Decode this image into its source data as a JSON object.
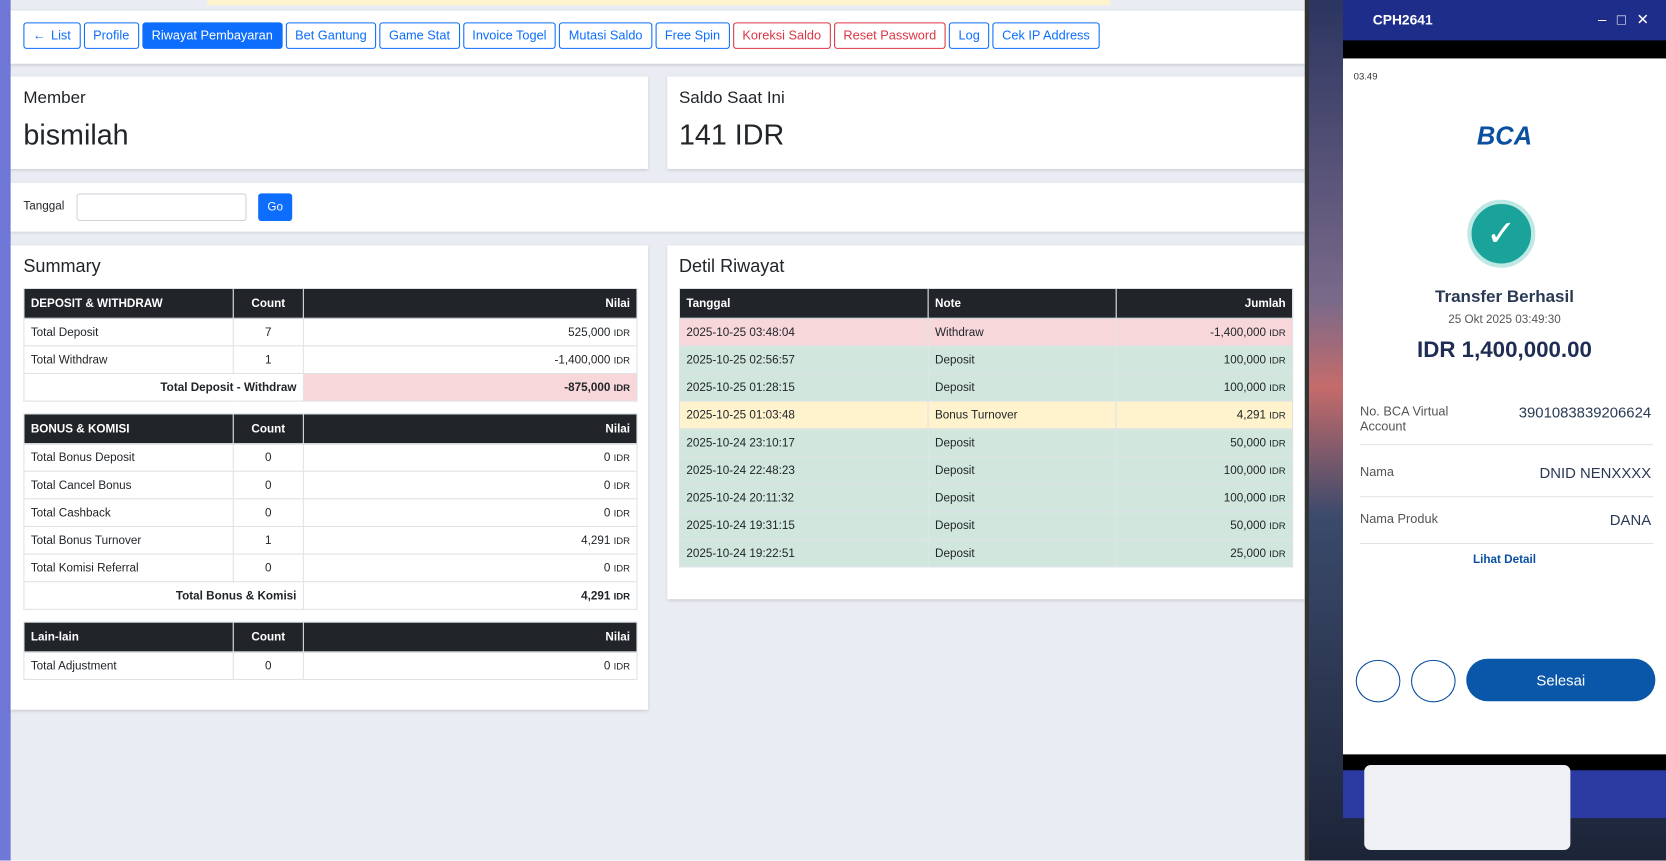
{
  "nav": [
    "List",
    "Profile",
    "Riwayat Pembayaran",
    "Bet Gantung",
    "Game Stat",
    "Invoice Togel",
    "Mutasi Saldo",
    "Free Spin",
    "Koreksi Saldo",
    "Reset Password",
    "Log",
    "Cek IP Address"
  ],
  "member": {
    "label": "Member",
    "value": "bismilah"
  },
  "saldo": {
    "label": "Saldo Saat Ini",
    "value": "141 IDR"
  },
  "filter": {
    "label": "Tanggal",
    "button": "Go"
  },
  "currency": "IDR",
  "summary": {
    "title": "Summary",
    "sections": [
      {
        "headers": [
          "DEPOSIT & WITHDRAW",
          "Count",
          "Nilai"
        ],
        "rows": [
          [
            "Total Deposit",
            "7",
            "525,000"
          ],
          [
            "Total Withdraw",
            "1",
            "-1,400,000"
          ]
        ],
        "total": {
          "label": "Total Deposit - Withdraw",
          "value": "-875,000",
          "color": "#f8d7da"
        }
      },
      {
        "headers": [
          "BONUS & KOMISI",
          "Count",
          "Nilai"
        ],
        "rows": [
          [
            "Total Bonus Deposit",
            "0",
            "0"
          ],
          [
            "Total Cancel Bonus",
            "0",
            "0"
          ],
          [
            "Total Cashback",
            "0",
            "0"
          ],
          [
            "Total Bonus Turnover",
            "1",
            "4,291"
          ],
          [
            "Total Komisi Referral",
            "0",
            "0"
          ]
        ],
        "total": {
          "label": "Total Bonus & Komisi",
          "value": "4,291",
          "color": "#ffffff"
        }
      },
      {
        "headers": [
          "Lain-lain",
          "Count",
          "Nilai"
        ],
        "rows": [
          [
            "Total Adjustment",
            "0",
            "0"
          ]
        ]
      }
    ]
  },
  "detail": {
    "title": "Detil Riwayat",
    "headers": [
      "Tanggal",
      "Note",
      "Jumlah"
    ],
    "rows": [
      {
        "cells": [
          "2025-10-25 03:48:04",
          "Withdraw",
          "-1,400,000"
        ],
        "color": "#f8d7da"
      },
      {
        "cells": [
          "2025-10-25 02:56:57",
          "Deposit",
          "100,000"
        ],
        "color": "#d1e7dd"
      },
      {
        "cells": [
          "2025-10-25 01:28:15",
          "Deposit",
          "100,000"
        ],
        "color": "#d1e7dd"
      },
      {
        "cells": [
          "2025-10-25 01:03:48",
          "Bonus Turnover",
          "4,291"
        ],
        "color": "#fff3cd"
      },
      {
        "cells": [
          "2025-10-24 23:10:17",
          "Deposit",
          "50,000"
        ],
        "color": "#d1e7dd"
      },
      {
        "cells": [
          "2025-10-24 22:48:23",
          "Deposit",
          "100,000"
        ],
        "color": "#d1e7dd"
      },
      {
        "cells": [
          "2025-10-24 20:11:32",
          "Deposit",
          "100,000"
        ],
        "color": "#d1e7dd"
      },
      {
        "cells": [
          "2025-10-24 19:31:15",
          "Deposit",
          "50,000"
        ],
        "color": "#d1e7dd"
      },
      {
        "cells": [
          "2025-10-24 19:22:51",
          "Deposit",
          "25,000"
        ],
        "color": "#d1e7dd"
      }
    ]
  },
  "phone": {
    "window_title": "CPH2641",
    "time": "03.49",
    "bank": "BCA",
    "status": "Transfer Berhasil",
    "datetime": "25 Okt 2025 03:49:30",
    "amount": "IDR 1,400,000.00",
    "fields": [
      [
        "No. BCA Virtual Account",
        "3901083839206624"
      ],
      [
        "Nama",
        "DNID NENXXXX"
      ],
      [
        "Nama Produk",
        "DANA"
      ]
    ],
    "more": "Lihat Detail",
    "done": "Selesai"
  }
}
